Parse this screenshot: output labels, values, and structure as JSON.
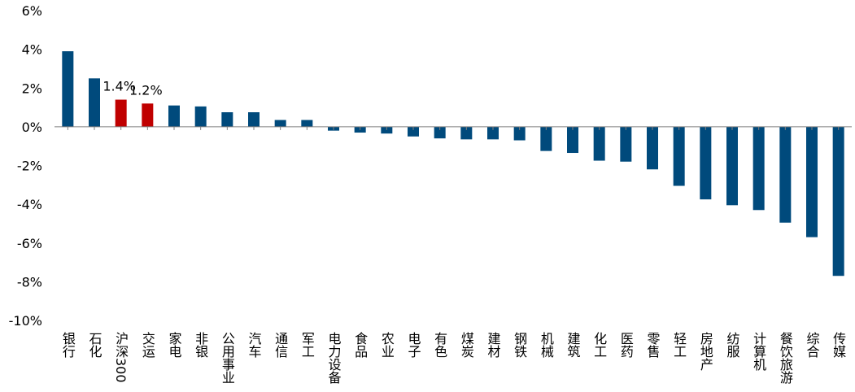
{
  "chart_data": {
    "type": "bar",
    "title": "",
    "xlabel": "",
    "ylabel": "",
    "ylim": [
      -10,
      6
    ],
    "y_ticks": [
      6,
      4,
      2,
      0,
      -2,
      -4,
      -6,
      -8,
      -10
    ],
    "y_tick_format": "percent",
    "grid": false,
    "colors": {
      "default": "#004a7c",
      "highlight": "#c00000"
    },
    "categories": [
      "银行",
      "石化",
      "沪深300",
      "交运",
      "家电",
      "非银",
      "公用事业",
      "汽车",
      "通信",
      "军工",
      "电力设备",
      "食品",
      "农业",
      "电子",
      "有色",
      "煤炭",
      "建材",
      "钢铁",
      "机械",
      "建筑",
      "化工",
      "医药",
      "零售",
      "轻工",
      "房地产",
      "纺服",
      "计算机",
      "餐饮旅游",
      "综合",
      "传媒"
    ],
    "values": [
      3.9,
      2.5,
      1.4,
      1.2,
      1.1,
      1.05,
      0.75,
      0.75,
      0.35,
      0.35,
      -0.2,
      -0.3,
      -0.35,
      -0.5,
      -0.6,
      -0.65,
      -0.65,
      -0.7,
      -1.25,
      -1.35,
      -1.75,
      -1.8,
      -2.2,
      -3.05,
      -3.75,
      -4.05,
      -4.3,
      -4.95,
      -5.7,
      -7.7
    ],
    "highlight": [
      false,
      false,
      true,
      true,
      false,
      false,
      false,
      false,
      false,
      false,
      false,
      false,
      false,
      false,
      false,
      false,
      false,
      false,
      false,
      false,
      false,
      false,
      false,
      false,
      false,
      false,
      false,
      false,
      false,
      false
    ],
    "data_labels": [
      null,
      null,
      "1.4%",
      "1.2%",
      null,
      null,
      null,
      null,
      null,
      null,
      null,
      null,
      null,
      null,
      null,
      null,
      null,
      null,
      null,
      null,
      null,
      null,
      null,
      null,
      null,
      null,
      null,
      null,
      null,
      null
    ]
  }
}
